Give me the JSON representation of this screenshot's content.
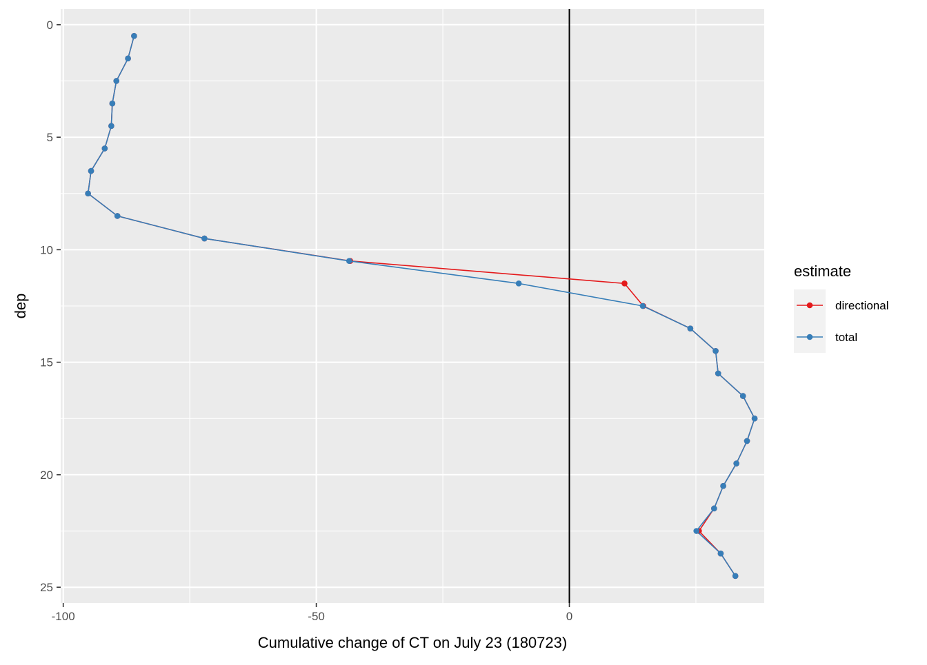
{
  "chart_data": {
    "type": "line",
    "title": "",
    "xlabel": "Cumulative change of CT on July 23 (180723)",
    "ylabel": "dep",
    "xlim": [
      -100.5,
      38.5
    ],
    "ylim": [
      -0.7,
      25.7
    ],
    "y_reversed": true,
    "grid": true,
    "panel_background": "#ebebeb",
    "grid_color": "#ffffff",
    "vline_x": 0,
    "vline_color": "#000000",
    "x_ticks": [
      {
        "value": -100,
        "label": "-100"
      },
      {
        "value": -50,
        "label": "-50"
      },
      {
        "value": 0,
        "label": "0"
      }
    ],
    "y_ticks": [
      {
        "value": 0,
        "label": "0"
      },
      {
        "value": 5,
        "label": "5"
      },
      {
        "value": 10,
        "label": "10"
      },
      {
        "value": 15,
        "label": "15"
      },
      {
        "value": 20,
        "label": "20"
      },
      {
        "value": 25,
        "label": "25"
      }
    ],
    "legend": {
      "title": "estimate",
      "position": "right"
    },
    "series": [
      {
        "name": "directional",
        "color": "#e41a1c",
        "points": [
          {
            "x": -86.0,
            "y": 0.5
          },
          {
            "x": -87.2,
            "y": 1.5
          },
          {
            "x": -89.5,
            "y": 2.5
          },
          {
            "x": -90.3,
            "y": 3.5
          },
          {
            "x": -90.5,
            "y": 4.5
          },
          {
            "x": -91.8,
            "y": 5.5
          },
          {
            "x": -94.5,
            "y": 6.5
          },
          {
            "x": -95.1,
            "y": 7.5
          },
          {
            "x": -89.3,
            "y": 8.5
          },
          {
            "x": -72.1,
            "y": 9.5
          },
          {
            "x": -43.3,
            "y": 10.5
          },
          {
            "x": 10.9,
            "y": 11.5
          },
          {
            "x": 14.6,
            "y": 12.5
          },
          {
            "x": 23.9,
            "y": 13.5
          },
          {
            "x": 28.9,
            "y": 14.5
          },
          {
            "x": 29.4,
            "y": 15.5
          },
          {
            "x": 34.3,
            "y": 16.5
          },
          {
            "x": 36.6,
            "y": 17.5
          },
          {
            "x": 35.1,
            "y": 18.5
          },
          {
            "x": 33.0,
            "y": 19.5
          },
          {
            "x": 30.4,
            "y": 20.5
          },
          {
            "x": 28.6,
            "y": 21.5
          },
          {
            "x": 25.6,
            "y": 22.5
          },
          {
            "x": 29.9,
            "y": 23.5
          },
          {
            "x": 32.8,
            "y": 24.5
          }
        ]
      },
      {
        "name": "total",
        "color": "#377eb8",
        "points": [
          {
            "x": -86.0,
            "y": 0.5
          },
          {
            "x": -87.2,
            "y": 1.5
          },
          {
            "x": -89.5,
            "y": 2.5
          },
          {
            "x": -90.3,
            "y": 3.5
          },
          {
            "x": -90.5,
            "y": 4.5
          },
          {
            "x": -91.8,
            "y": 5.5
          },
          {
            "x": -94.5,
            "y": 6.5
          },
          {
            "x": -95.1,
            "y": 7.5
          },
          {
            "x": -89.3,
            "y": 8.5
          },
          {
            "x": -72.1,
            "y": 9.5
          },
          {
            "x": -43.5,
            "y": 10.5
          },
          {
            "x": -10.0,
            "y": 11.5
          },
          {
            "x": 14.5,
            "y": 12.5
          },
          {
            "x": 23.9,
            "y": 13.5
          },
          {
            "x": 28.9,
            "y": 14.5
          },
          {
            "x": 29.4,
            "y": 15.5
          },
          {
            "x": 34.3,
            "y": 16.5
          },
          {
            "x": 36.6,
            "y": 17.5
          },
          {
            "x": 35.1,
            "y": 18.5
          },
          {
            "x": 33.0,
            "y": 19.5
          },
          {
            "x": 30.4,
            "y": 20.5
          },
          {
            "x": 28.6,
            "y": 21.5
          },
          {
            "x": 25.1,
            "y": 22.5
          },
          {
            "x": 29.9,
            "y": 23.5
          },
          {
            "x": 32.8,
            "y": 24.5
          }
        ]
      }
    ]
  }
}
